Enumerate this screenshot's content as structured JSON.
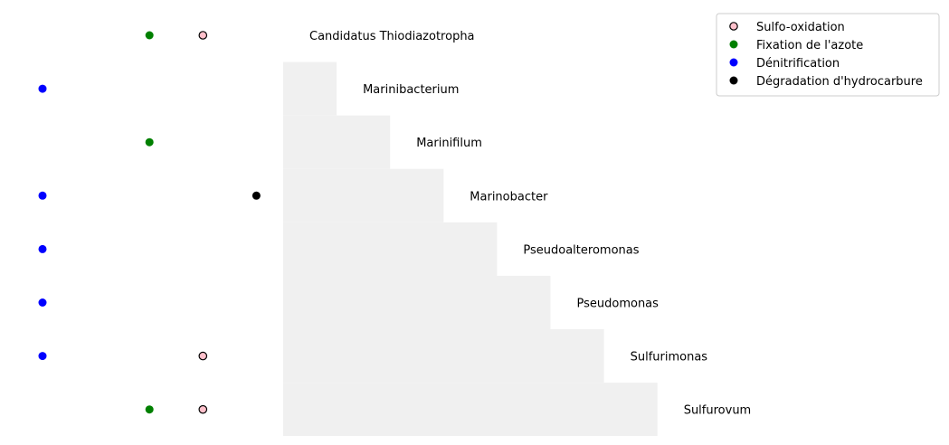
{
  "chart_data": {
    "type": "scatter",
    "categories": [
      "Candidatus Thiodiazotropha",
      "Marinibacterium",
      "Marinifilum",
      "Marinobacter",
      "Pseudoalteromonas",
      "Pseudomonas",
      "Sulfurimonas",
      "Sulfurovum"
    ],
    "series": [
      {
        "name": "Sulfo-oxidation",
        "color": "#ffc0cb",
        "edge_color": "#000000",
        "x": 4,
        "members": [
          "Candidatus Thiodiazotropha",
          "Sulfurimonas",
          "Sulfurovum"
        ]
      },
      {
        "name": "Fixation de l'azote",
        "color": "#008000",
        "x": 3,
        "members": [
          "Candidatus Thiodiazotropha",
          "Marinifilum",
          "Sulfurovum"
        ]
      },
      {
        "name": "Dénitrification",
        "color": "#0000ff",
        "x": 1,
        "members": [
          "Marinibacterium",
          "Marinobacter",
          "Pseudoalteromonas",
          "Pseudomonas",
          "Sulfurimonas"
        ]
      },
      {
        "name": "Dégradation d'hydrocarbure",
        "color": "#000000",
        "x": 5,
        "members": [
          "Marinobacter"
        ]
      }
    ],
    "shading": {
      "color": "#f0f0f0",
      "shape": "staircase"
    },
    "axes_visible": false,
    "grid": false,
    "legend_position": "top-right"
  }
}
